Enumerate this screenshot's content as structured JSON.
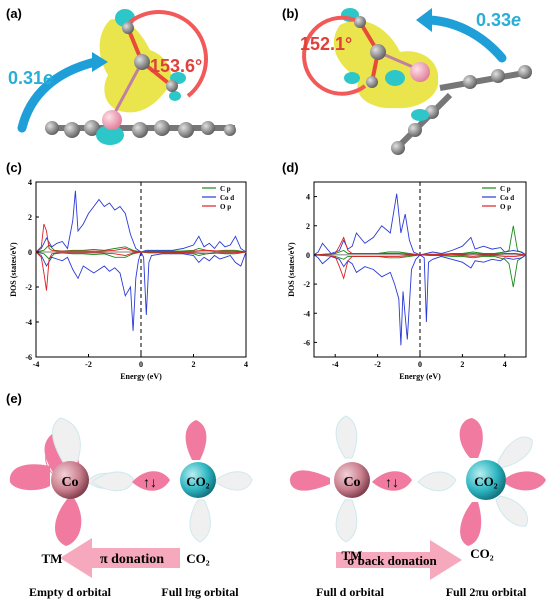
{
  "panels": {
    "a": {
      "label": "(a)",
      "angle": "153.6°",
      "charge_value": "0.31",
      "charge_unit": "e"
    },
    "b": {
      "label": "(b)",
      "angle": "152.1°",
      "charge_value": "0.33",
      "charge_unit": "e"
    },
    "c": {
      "label": "(c)"
    },
    "d": {
      "label": "(d)"
    },
    "e": {
      "label": "(e)"
    }
  },
  "colors": {
    "charge_gain": "#e8e23a",
    "charge_loss": "#2ec7c9",
    "angle_arc": "#f25a5a",
    "arrow": "#1f9fd8",
    "carbon": "#8a8a8a",
    "cobalt": "#f4a7b9",
    "oxygen": "#e84a3a",
    "lobe_pink": "#f07aa0",
    "lobe_grey": "#e6e6e6"
  },
  "chart_data": [
    {
      "type": "line",
      "panel": "c",
      "xlabel": "Energy (eV)",
      "ylabel": "DOS (states/eV)",
      "xlim": [
        -4,
        4
      ],
      "ylim": [
        -6,
        4
      ],
      "xticks": [
        "-4",
        "-2",
        "0",
        "2",
        "4"
      ],
      "yticks": [
        "-6",
        "-4",
        "-2",
        "0",
        "2",
        "4"
      ],
      "fermi_level": 0,
      "legend_position": "top-right",
      "series": [
        {
          "name": "C p",
          "color": "#1a8a1a",
          "x": [
            -4,
            -3.7,
            -3.5,
            -3.3,
            -3.0,
            -2.6,
            -2.2,
            -1.8,
            -1.4,
            -1.0,
            -0.6,
            -0.3,
            0,
            0.3,
            0.6,
            1.0,
            1.5,
            2.0,
            2.2,
            2.5,
            2.8,
            3.2,
            3.6,
            4
          ],
          "y": [
            0,
            0.1,
            0.4,
            0.1,
            0.05,
            0.1,
            0.1,
            0.15,
            0.1,
            0.2,
            0.3,
            0.1,
            0,
            0.05,
            0.05,
            0.05,
            0.05,
            0.1,
            0.2,
            0.1,
            0.05,
            0.1,
            0.1,
            0
          ]
        },
        {
          "name": "C p (down)",
          "color": "#1a8a1a",
          "x": [
            -4,
            -3.7,
            -3.5,
            -3.3,
            -3.0,
            -2.6,
            -2.2,
            -1.8,
            -1.4,
            -1.0,
            -0.6,
            -0.3,
            0,
            0.3,
            0.6,
            1.0,
            1.5,
            2.0,
            2.2,
            2.5,
            2.8,
            3.2,
            3.6,
            4
          ],
          "y": [
            0,
            -0.1,
            -0.4,
            -0.1,
            -0.05,
            -0.1,
            -0.1,
            -0.15,
            -0.1,
            -0.3,
            -0.3,
            -0.1,
            0,
            -0.05,
            -0.05,
            -0.05,
            -0.05,
            -0.1,
            -0.2,
            -0.1,
            -0.05,
            -0.1,
            -0.1,
            0
          ]
        },
        {
          "name": "Co d",
          "color": "#2a3ad6",
          "x": [
            -4,
            -3.8,
            -3.6,
            -3.4,
            -3.2,
            -3.0,
            -2.8,
            -2.6,
            -2.5,
            -2.4,
            -2.2,
            -2.0,
            -1.8,
            -1.6,
            -1.4,
            -1.2,
            -1.0,
            -0.8,
            -0.6,
            -0.4,
            -0.2,
            0,
            0.2,
            0.4,
            0.8,
            1.2,
            1.6,
            2.0,
            2.2,
            2.4,
            2.6,
            2.8,
            3.0,
            3.2,
            3.4,
            3.6,
            3.8,
            4
          ],
          "y": [
            0,
            0.2,
            0.8,
            0.3,
            0.5,
            0.6,
            0.2,
            1.8,
            3.5,
            1.2,
            1.6,
            2.2,
            2.6,
            3.0,
            2.6,
            2.8,
            2.4,
            2.6,
            2.2,
            1.0,
            0.2,
            0,
            0.1,
            0.1,
            0.1,
            0.1,
            0.2,
            0.4,
            0.9,
            0.3,
            0.5,
            0.2,
            0.6,
            0.3,
            0.4,
            0.9,
            0.2,
            0
          ]
        },
        {
          "name": "Co d (down)",
          "color": "#2a3ad6",
          "x": [
            -4,
            -3.8,
            -3.6,
            -3.4,
            -3.2,
            -3.0,
            -2.8,
            -2.6,
            -2.4,
            -2.2,
            -2.0,
            -1.8,
            -1.6,
            -1.4,
            -1.2,
            -1.0,
            -0.8,
            -0.6,
            -0.4,
            -0.3,
            -0.2,
            -0.1,
            0,
            0.1,
            0.2,
            0.3,
            0.4,
            0.8,
            1.2,
            1.6,
            2.0,
            2.2,
            2.4,
            2.6,
            2.8,
            3.0,
            3.2,
            3.4,
            3.6,
            3.8,
            4
          ],
          "y": [
            0,
            -0.2,
            -0.8,
            -0.3,
            -0.4,
            -0.5,
            -0.3,
            -1.0,
            -1.5,
            -0.8,
            -1.0,
            -1.2,
            -1.0,
            -0.8,
            -1.1,
            -0.9,
            -1.2,
            -2.5,
            -2.0,
            -4.5,
            -1.5,
            -0.5,
            0,
            -0.3,
            -3.6,
            -0.6,
            -0.2,
            -0.1,
            -0.1,
            -0.1,
            -0.2,
            -0.6,
            -0.3,
            -0.5,
            -0.2,
            -0.4,
            -0.3,
            -0.2,
            -0.6,
            -0.8,
            0
          ]
        },
        {
          "name": "O p",
          "color": "#e02020",
          "x": [
            -4,
            -3.8,
            -3.7,
            -3.6,
            -3.5,
            -3.4,
            -3.2,
            -3.0,
            -2.5,
            -2.0,
            -1.5,
            -1.0,
            -0.6,
            -0.3,
            0,
            0.5,
            1.0,
            1.5,
            2.0,
            2.5,
            3.0,
            3.5,
            4
          ],
          "y": [
            0,
            0.3,
            1.6,
            1.2,
            0.2,
            0.1,
            0.05,
            0.05,
            0.05,
            0.05,
            0.05,
            0.1,
            0.2,
            0.05,
            0,
            0.02,
            0.02,
            0.02,
            0.05,
            0.1,
            0.05,
            0.05,
            0
          ]
        },
        {
          "name": "O p (down)",
          "color": "#e02020",
          "x": [
            -4,
            -3.8,
            -3.7,
            -3.6,
            -3.5,
            -3.4,
            -3.2,
            -3.0,
            -2.5,
            -2.0,
            -1.5,
            -1.0,
            -0.6,
            -0.3,
            0,
            0.5,
            1.0,
            1.5,
            2.0,
            2.5,
            3.0,
            3.5,
            4
          ],
          "y": [
            0,
            -0.3,
            -1.2,
            -2.2,
            -0.4,
            -0.1,
            -0.05,
            -0.05,
            -0.05,
            -0.05,
            -0.05,
            -0.1,
            -0.2,
            -0.05,
            0,
            -0.02,
            -0.02,
            -0.02,
            -0.05,
            -0.1,
            -0.05,
            -0.05,
            0
          ]
        }
      ]
    },
    {
      "type": "line",
      "panel": "d",
      "xlabel": "Energy (eV)",
      "ylabel": "DOS (states/eV)",
      "xlim": [
        -5,
        5
      ],
      "ylim": [
        -7,
        5
      ],
      "xticks": [
        "-4",
        "-2",
        "0",
        "2",
        "4"
      ],
      "yticks": [
        "-6",
        "-4",
        "-2",
        "0",
        "2",
        "4"
      ],
      "fermi_level": 0,
      "legend_position": "top-right",
      "series": [
        {
          "name": "C p",
          "color": "#1a8a1a",
          "x": [
            -5,
            -4.5,
            -4,
            -3.6,
            -3.4,
            -3,
            -2.5,
            -2,
            -1.5,
            -1,
            -0.5,
            0,
            0.5,
            1,
            1.5,
            2,
            2.5,
            3,
            3.5,
            4,
            4.2,
            4.4,
            4.6,
            5
          ],
          "y": [
            0,
            0.05,
            0.1,
            0.3,
            0.1,
            0.1,
            0.1,
            0.1,
            0.2,
            0.2,
            0.1,
            0,
            0.05,
            0.05,
            0.1,
            0.1,
            0.2,
            0.1,
            0.1,
            0.2,
            0.3,
            2.0,
            0.3,
            0
          ]
        },
        {
          "name": "C p (down)",
          "color": "#1a8a1a",
          "x": [
            -5,
            -4.5,
            -4,
            -3.6,
            -3.4,
            -3,
            -2.5,
            -2,
            -1.5,
            -1,
            -0.5,
            0,
            0.5,
            1,
            1.5,
            2,
            2.5,
            3,
            3.5,
            4,
            4.2,
            4.4,
            4.6,
            5
          ],
          "y": [
            0,
            -0.05,
            -0.1,
            -0.3,
            -0.1,
            -0.1,
            -0.1,
            -0.1,
            -0.2,
            -0.2,
            -0.1,
            0,
            -0.05,
            -0.05,
            -0.1,
            -0.1,
            -0.2,
            -0.1,
            -0.1,
            -0.3,
            -0.6,
            -2.2,
            -0.4,
            0
          ]
        },
        {
          "name": "Co d",
          "color": "#2a3ad6",
          "x": [
            -5,
            -4.8,
            -4.6,
            -4.2,
            -3.8,
            -3.6,
            -3.4,
            -3.2,
            -3.0,
            -2.6,
            -2.2,
            -1.8,
            -1.4,
            -1.1,
            -0.9,
            -0.7,
            -0.5,
            -0.3,
            0,
            0.3,
            0.6,
            1.0,
            1.5,
            2.0,
            2.4,
            2.6,
            3.0,
            3.4,
            3.8,
            4.0,
            4.4,
            4.8,
            5
          ],
          "y": [
            0,
            0.2,
            0.8,
            0.1,
            0.3,
            1.0,
            0.4,
            0.6,
            1.5,
            0.8,
            1.2,
            2.0,
            1.5,
            4.2,
            1.5,
            2.8,
            1.0,
            0.2,
            0,
            0.1,
            0.2,
            0.1,
            0.3,
            0.6,
            1.2,
            0.4,
            0.6,
            0.4,
            0.5,
            0.2,
            0.3,
            0.2,
            0
          ]
        },
        {
          "name": "Co d (down)",
          "color": "#2a3ad6",
          "x": [
            -5,
            -4.8,
            -4.6,
            -4.2,
            -3.8,
            -3.6,
            -3.4,
            -3.2,
            -3.0,
            -2.6,
            -2.2,
            -1.8,
            -1.4,
            -1.2,
            -1.0,
            -0.9,
            -0.8,
            -0.6,
            -0.4,
            -0.2,
            0,
            0.2,
            0.3,
            0.4,
            0.6,
            1.0,
            1.5,
            2.0,
            2.4,
            2.6,
            3.0,
            3.4,
            3.8,
            4.0,
            4.4,
            4.8,
            5
          ],
          "y": [
            0,
            -0.2,
            -0.6,
            -0.1,
            -0.3,
            -0.8,
            -0.4,
            -0.6,
            -1.2,
            -0.8,
            -1.0,
            -1.5,
            -1.2,
            -2.0,
            -3.0,
            -6.2,
            -2.5,
            -5.8,
            -1.0,
            -0.3,
            0,
            -0.2,
            -4.6,
            -0.5,
            -0.3,
            -0.1,
            -0.3,
            -0.5,
            -0.9,
            -0.4,
            -0.5,
            -0.3,
            -0.4,
            -0.2,
            -0.3,
            -0.2,
            0
          ]
        },
        {
          "name": "O p",
          "color": "#e02020",
          "x": [
            -5,
            -4.5,
            -4,
            -3.8,
            -3.6,
            -3.4,
            -3.2,
            -3,
            -2.5,
            -2,
            -1.5,
            -1,
            -0.5,
            0,
            0.5,
            1,
            1.5,
            2,
            2.5,
            3,
            3.5,
            4,
            4.5,
            5
          ],
          "y": [
            0,
            0.05,
            0.1,
            0.6,
            1.2,
            0.3,
            0.1,
            0.1,
            0.1,
            0.1,
            0.1,
            0.1,
            0.05,
            0,
            0.02,
            0.02,
            0.02,
            0.05,
            0.1,
            0.05,
            0.05,
            0.1,
            0.1,
            0
          ]
        },
        {
          "name": "O p (down)",
          "color": "#e02020",
          "x": [
            -5,
            -4.5,
            -4,
            -3.8,
            -3.6,
            -3.4,
            -3.2,
            -3,
            -2.5,
            -2,
            -1.5,
            -1,
            -0.5,
            0,
            0.5,
            1,
            1.5,
            2,
            2.5,
            3,
            3.5,
            4,
            4.5,
            5
          ],
          "y": [
            0,
            -0.05,
            -0.1,
            -0.8,
            -1.6,
            -0.4,
            -0.1,
            -0.1,
            -0.1,
            -0.1,
            -0.1,
            -0.1,
            -0.05,
            0,
            -0.02,
            -0.02,
            -0.02,
            -0.05,
            -0.1,
            -0.05,
            -0.05,
            -0.1,
            -0.1,
            0
          ]
        }
      ]
    }
  ],
  "orbital_left": {
    "metal": "Co",
    "ligand": "CO₂",
    "spin": "↑↓",
    "tm_label": "TM",
    "co2_label": "CO₂",
    "donation": "π donation",
    "caption_left": "Empty d orbital",
    "caption_right": "Full lπg orbital"
  },
  "orbital_right": {
    "metal": "Co",
    "ligand": "CO₂",
    "spin": "↑↓",
    "tm_label": "TM",
    "co2_label": "CO₂",
    "donation": "σ back donation",
    "caption_left": "Full d orbital",
    "caption_right": "Full 2πu orbital"
  }
}
